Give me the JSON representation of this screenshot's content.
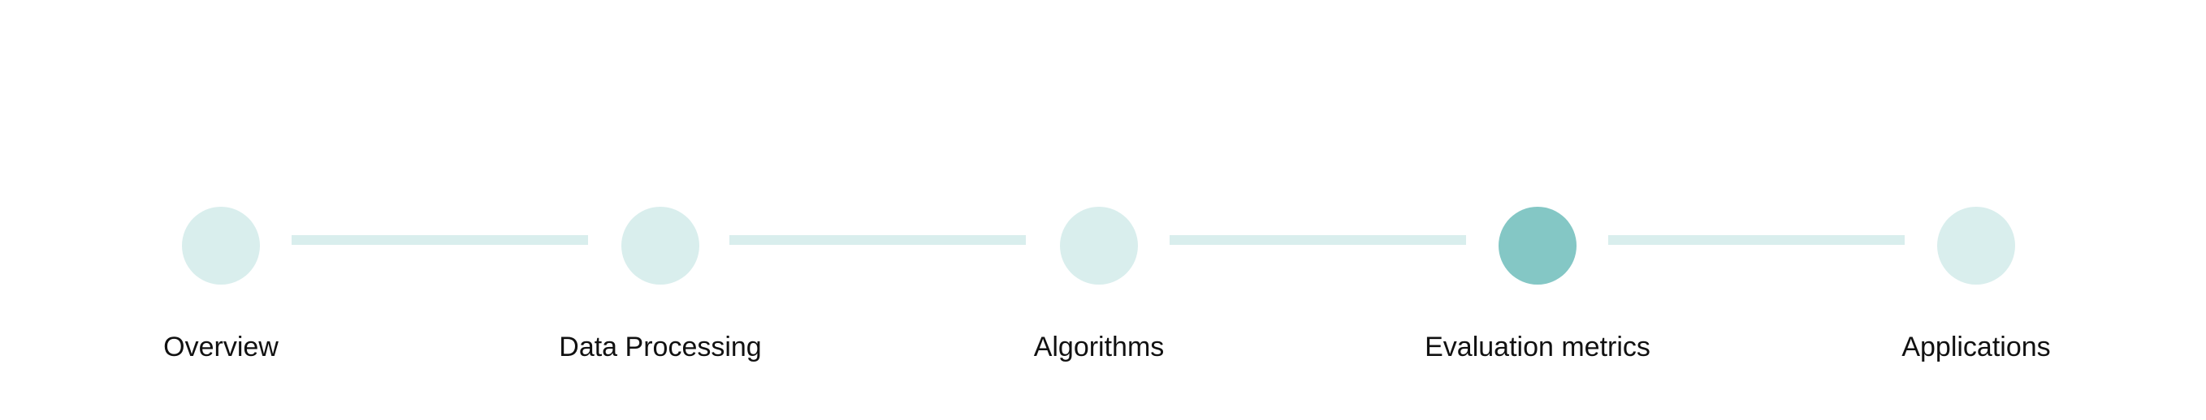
{
  "stepper": {
    "active_index": 3,
    "colors": {
      "inactive": "#d9eeed",
      "active": "#84c7c5",
      "connector": "#d9eeed",
      "label": "#111111"
    },
    "steps": [
      {
        "label": "Overview"
      },
      {
        "label": "Data Processing"
      },
      {
        "label": "Algorithms"
      },
      {
        "label": "Evaluation metrics"
      },
      {
        "label": "Applications"
      }
    ]
  }
}
